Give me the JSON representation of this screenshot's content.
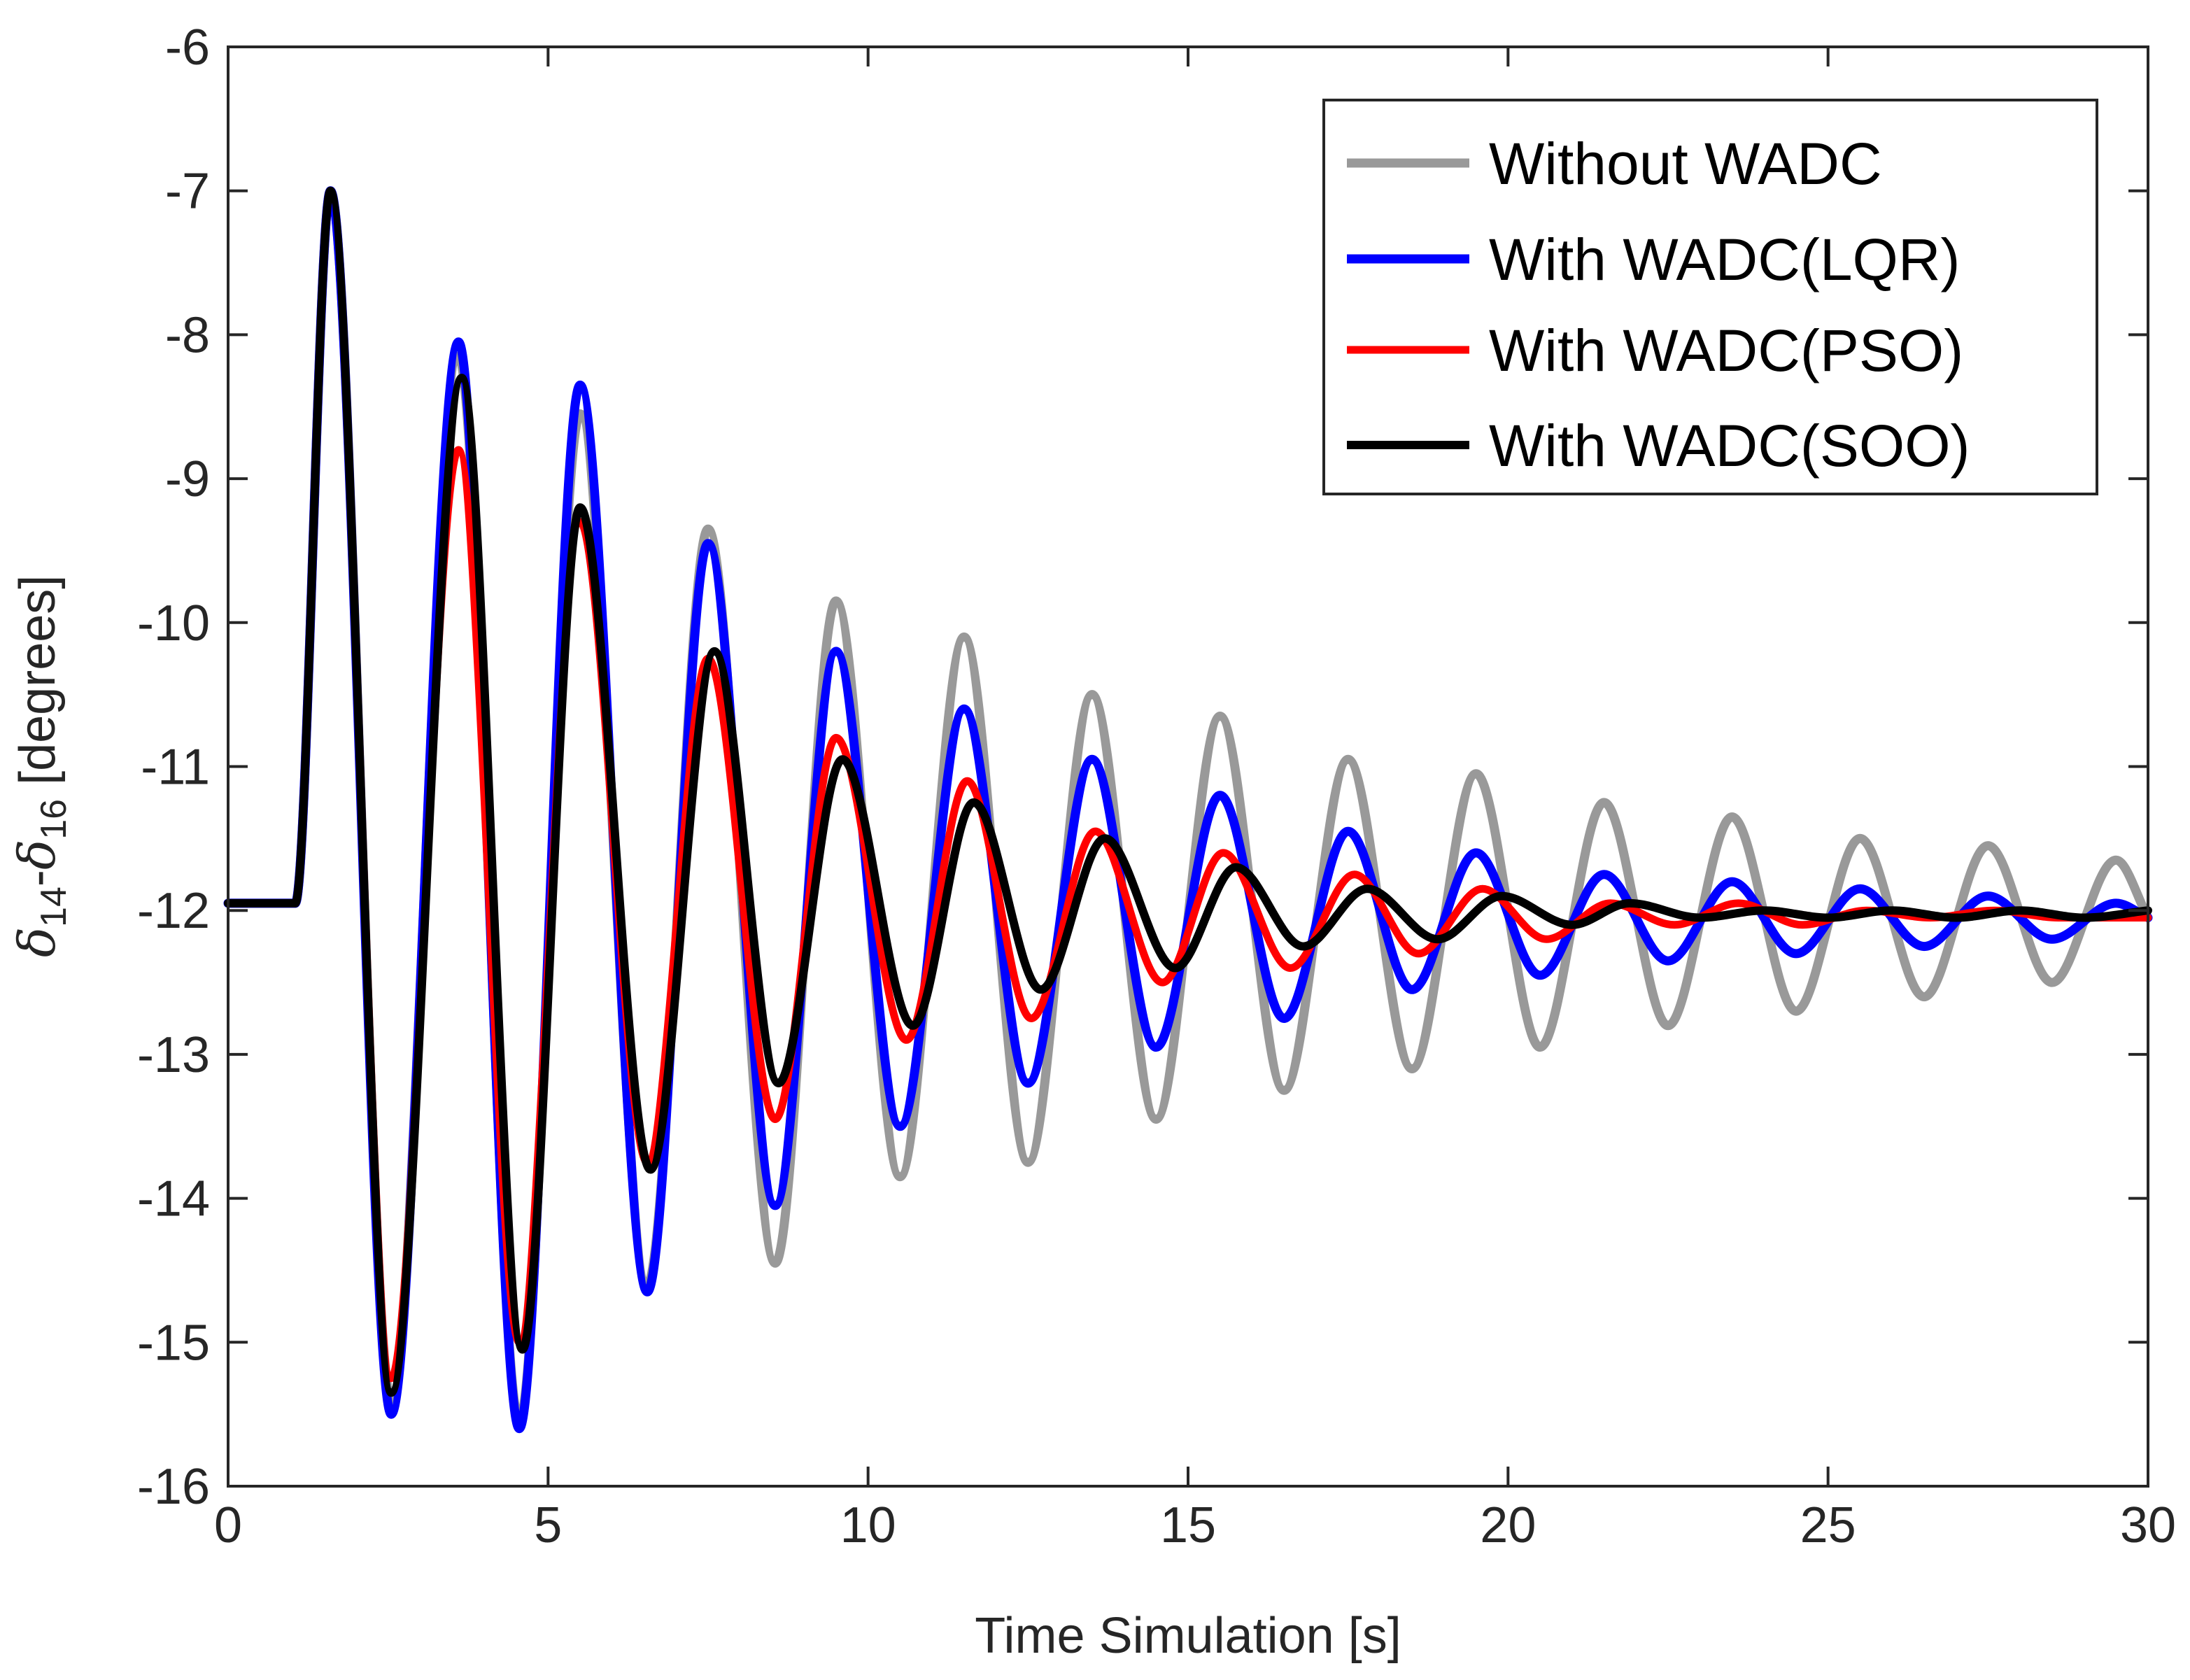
{
  "chart_data": {
    "type": "line",
    "title": "",
    "xlabel": "Time Simulation [s]",
    "ylabel": {
      "delta": "δ",
      "sub_a": "14",
      "dash": "-",
      "sub_b": "16",
      "unit": " [degrees]"
    },
    "xlim": [
      0,
      30
    ],
    "ylim": [
      -16,
      -6
    ],
    "xticks": [
      0,
      5,
      10,
      15,
      20,
      25,
      30
    ],
    "xtick_labels": [
      "0",
      "5",
      "10",
      "15",
      "20",
      "25",
      "30"
    ],
    "yticks": [
      -16,
      -15,
      -14,
      -13,
      -12,
      -11,
      -10,
      -9,
      -8,
      -7,
      -6
    ],
    "ytick_labels": [
      "-16",
      "-15",
      "-14",
      "-13",
      "-12",
      "-11",
      "-10",
      "-9",
      "-8",
      "-7",
      "-6"
    ],
    "grid": false,
    "legend_position": "top-right",
    "series": [
      {
        "name": "Without WADC",
        "color": "#999999",
        "points": [
          [
            0,
            -11.95
          ],
          [
            1.05,
            -11.95
          ],
          [
            1.6,
            -7.0
          ],
          [
            2.55,
            -15.4
          ],
          [
            3.6,
            -8.15
          ],
          [
            4.55,
            -15.55
          ],
          [
            5.5,
            -8.55
          ],
          [
            6.55,
            -14.6
          ],
          [
            7.5,
            -9.35
          ],
          [
            8.55,
            -14.45
          ],
          [
            9.5,
            -9.85
          ],
          [
            10.5,
            -13.85
          ],
          [
            11.5,
            -10.1
          ],
          [
            12.5,
            -13.75
          ],
          [
            13.5,
            -10.5
          ],
          [
            14.5,
            -13.45
          ],
          [
            15.5,
            -10.65
          ],
          [
            16.5,
            -13.25
          ],
          [
            17.5,
            -10.95
          ],
          [
            18.5,
            -13.1
          ],
          [
            19.5,
            -11.05
          ],
          [
            20.5,
            -12.95
          ],
          [
            21.5,
            -11.25
          ],
          [
            22.5,
            -12.8
          ],
          [
            23.5,
            -11.35
          ],
          [
            24.5,
            -12.7
          ],
          [
            25.5,
            -11.5
          ],
          [
            26.5,
            -12.6
          ],
          [
            27.5,
            -11.55
          ],
          [
            28.5,
            -12.5
          ],
          [
            29.5,
            -11.65
          ],
          [
            30,
            -12.05
          ]
        ]
      },
      {
        "name": "With WADC(LQR)",
        "color": "#0000ff",
        "points": [
          [
            0,
            -11.95
          ],
          [
            1.05,
            -11.95
          ],
          [
            1.6,
            -7.0
          ],
          [
            2.55,
            -15.5
          ],
          [
            3.6,
            -8.05
          ],
          [
            4.55,
            -15.6
          ],
          [
            5.5,
            -8.35
          ],
          [
            6.55,
            -14.65
          ],
          [
            7.5,
            -9.45
          ],
          [
            8.55,
            -14.05
          ],
          [
            9.5,
            -10.2
          ],
          [
            10.5,
            -13.5
          ],
          [
            11.5,
            -10.6
          ],
          [
            12.5,
            -13.2
          ],
          [
            13.5,
            -10.95
          ],
          [
            14.5,
            -12.95
          ],
          [
            15.5,
            -11.2
          ],
          [
            16.5,
            -12.75
          ],
          [
            17.5,
            -11.45
          ],
          [
            18.5,
            -12.55
          ],
          [
            19.5,
            -11.6
          ],
          [
            20.5,
            -12.45
          ],
          [
            21.5,
            -11.75
          ],
          [
            22.5,
            -12.35
          ],
          [
            23.5,
            -11.8
          ],
          [
            24.5,
            -12.3
          ],
          [
            25.5,
            -11.85
          ],
          [
            26.5,
            -12.25
          ],
          [
            27.5,
            -11.9
          ],
          [
            28.5,
            -12.2
          ],
          [
            29.5,
            -11.95
          ],
          [
            30,
            -12.05
          ]
        ]
      },
      {
        "name": "With WADC(PSO)",
        "color": "#ff0000",
        "points": [
          [
            0,
            -11.95
          ],
          [
            1.05,
            -11.95
          ],
          [
            1.6,
            -7.0
          ],
          [
            2.55,
            -15.25
          ],
          [
            3.6,
            -8.8
          ],
          [
            4.55,
            -15.0
          ],
          [
            5.5,
            -9.3
          ],
          [
            6.55,
            -13.75
          ],
          [
            7.5,
            -10.25
          ],
          [
            8.55,
            -13.45
          ],
          [
            9.5,
            -10.8
          ],
          [
            10.6,
            -12.9
          ],
          [
            11.55,
            -11.1
          ],
          [
            12.55,
            -12.75
          ],
          [
            13.55,
            -11.45
          ],
          [
            14.6,
            -12.5
          ],
          [
            15.55,
            -11.6
          ],
          [
            16.6,
            -12.4
          ],
          [
            17.6,
            -11.75
          ],
          [
            18.6,
            -12.3
          ],
          [
            19.6,
            -11.85
          ],
          [
            20.6,
            -12.2
          ],
          [
            21.6,
            -11.95
          ],
          [
            22.6,
            -12.1
          ],
          [
            23.6,
            -11.95
          ],
          [
            24.6,
            -12.1
          ],
          [
            25.6,
            -12.0
          ],
          [
            26.6,
            -12.05
          ],
          [
            27.6,
            -12.0
          ],
          [
            28.6,
            -12.05
          ],
          [
            30,
            -12.05
          ]
        ]
      },
      {
        "name": "With WADC(SOO)",
        "color": "#000000",
        "points": [
          [
            0,
            -11.95
          ],
          [
            1.05,
            -11.95
          ],
          [
            1.6,
            -7.0
          ],
          [
            2.55,
            -15.35
          ],
          [
            3.65,
            -8.3
          ],
          [
            4.6,
            -15.05
          ],
          [
            5.5,
            -9.2
          ],
          [
            6.6,
            -13.8
          ],
          [
            7.6,
            -10.2
          ],
          [
            8.6,
            -13.2
          ],
          [
            9.6,
            -10.95
          ],
          [
            10.7,
            -12.8
          ],
          [
            11.65,
            -11.25
          ],
          [
            12.7,
            -12.55
          ],
          [
            13.7,
            -11.5
          ],
          [
            14.8,
            -12.4
          ],
          [
            15.75,
            -11.7
          ],
          [
            16.8,
            -12.25
          ],
          [
            17.8,
            -11.85
          ],
          [
            18.9,
            -12.2
          ],
          [
            19.9,
            -11.9
          ],
          [
            21.0,
            -12.1
          ],
          [
            21.9,
            -11.95
          ],
          [
            23.0,
            -12.05
          ],
          [
            24.0,
            -12.0
          ],
          [
            25.0,
            -12.05
          ],
          [
            26.0,
            -12.0
          ],
          [
            27.0,
            -12.05
          ],
          [
            28.0,
            -12.0
          ],
          [
            29.0,
            -12.05
          ],
          [
            30,
            -12.0
          ]
        ]
      }
    ]
  }
}
